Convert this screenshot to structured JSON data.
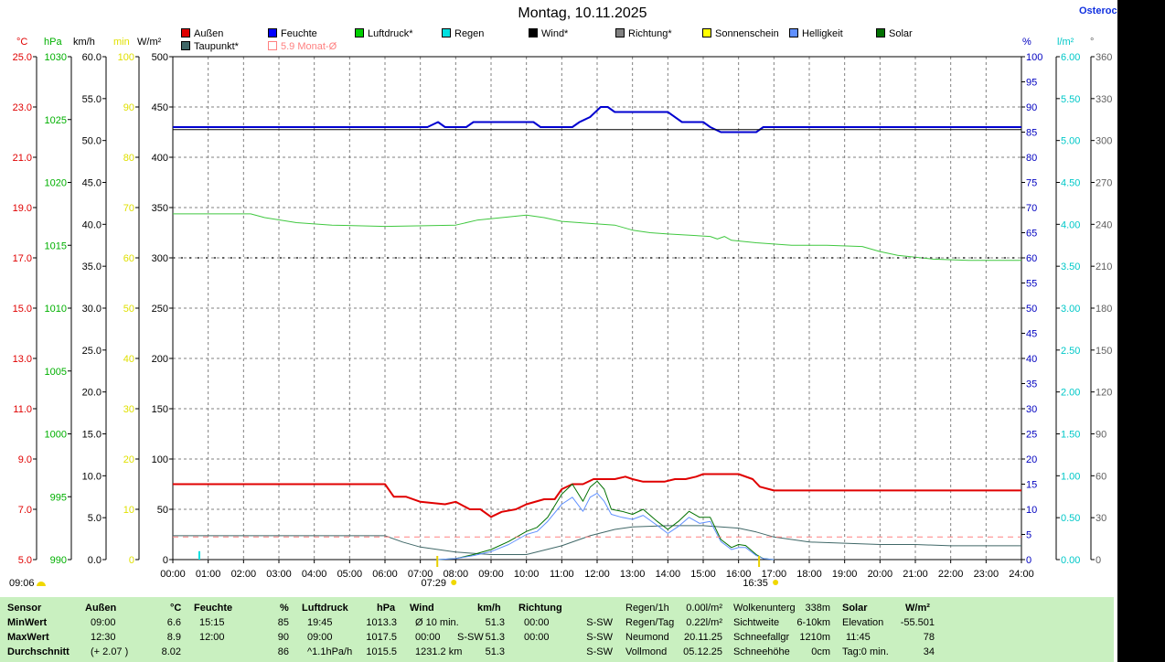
{
  "title": "Montag, 10.11.2025",
  "site_label": "Osteroc",
  "legend": [
    {
      "label": "Außen",
      "color": "#e00000"
    },
    {
      "label": "Feuchte",
      "color": "#0000ff"
    },
    {
      "label": "Luftdruck*",
      "color": "#00d000"
    },
    {
      "label": "Regen",
      "color": "#00e0e0"
    },
    {
      "label": "Wind*",
      "color": "#000000"
    },
    {
      "label": "Richtung*",
      "color": "#808080"
    },
    {
      "label": "Sonnenschein",
      "color": "#ffff00"
    },
    {
      "label": "Helligkeit",
      "color": "#6090ff"
    },
    {
      "label": "Solar",
      "color": "#007000"
    },
    {
      "label": "Taupunkt*",
      "color": "#406868"
    },
    {
      "label": "5.9 Monat-Ø",
      "color": "#ff8080"
    }
  ],
  "axis_units": {
    "temp": "°C",
    "pressure": "hPa",
    "wind": "km/h",
    "minutes": "min",
    "solar": "W/m²",
    "humidity": "%",
    "rain": "l/m²",
    "direction": "°"
  },
  "markers": {
    "sunrise": "07:29",
    "sunset": "16:35",
    "bottom_left_time": "09:06"
  },
  "chart_data": {
    "type": "line",
    "x_ticks": [
      "00:00",
      "01:00",
      "02:00",
      "03:00",
      "04:00",
      "05:00",
      "06:00",
      "07:00",
      "08:00",
      "09:00",
      "10:00",
      "11:00",
      "12:00",
      "13:00",
      "14:00",
      "15:00",
      "16:00",
      "17:00",
      "18:00",
      "19:00",
      "20:00",
      "21:00",
      "22:00",
      "23:00",
      "24:00"
    ],
    "xlim": [
      0,
      24
    ],
    "axes": {
      "temp": {
        "ticks": [
          "5.0",
          "7.0",
          "9.0",
          "11.0",
          "13.0",
          "15.0",
          "17.0",
          "19.0",
          "21.0",
          "23.0",
          "25.0"
        ],
        "range": [
          5,
          25
        ],
        "color": "#e00000"
      },
      "pressure": {
        "ticks": [
          "990",
          "995",
          "1000",
          "1005",
          "1010",
          "1015",
          "1020",
          "1025",
          "1030"
        ],
        "range": [
          990,
          1030
        ],
        "color": "#00b000"
      },
      "wind": {
        "ticks": [
          "0.0",
          "5.0",
          "10.0",
          "15.0",
          "20.0",
          "25.0",
          "30.0",
          "35.0",
          "40.0",
          "45.0",
          "50.0",
          "55.0",
          "60.0"
        ],
        "range": [
          0,
          60
        ],
        "color": "#000000"
      },
      "minutes": {
        "ticks": [
          "0",
          "10",
          "20",
          "30",
          "40",
          "50",
          "60",
          "70",
          "80",
          "90",
          "100"
        ],
        "range": [
          0,
          100
        ],
        "color": "#e0e000"
      },
      "solar": {
        "ticks": [
          "0",
          "50",
          "100",
          "150",
          "200",
          "250",
          "300",
          "350",
          "400",
          "450",
          "500"
        ],
        "range": [
          0,
          500
        ],
        "color": "#000000"
      },
      "humidity": {
        "ticks": [
          "0",
          "5",
          "10",
          "15",
          "20",
          "25",
          "30",
          "35",
          "40",
          "45",
          "50",
          "55",
          "60",
          "65",
          "70",
          "75",
          "80",
          "85",
          "90",
          "95",
          "100"
        ],
        "range": [
          0,
          100
        ],
        "color": "#0000c0"
      },
      "rain": {
        "ticks": [
          "0.00",
          "0.50",
          "1.00",
          "1.50",
          "2.00",
          "2.50",
          "3.00",
          "3.50",
          "4.00",
          "4.50",
          "5.00",
          "5.50",
          "6.00"
        ],
        "range": [
          0,
          6
        ],
        "color": "#00c8c8"
      },
      "direction": {
        "ticks": [
          "0",
          "30",
          "60",
          "90",
          "120",
          "150",
          "180",
          "210",
          "240",
          "270",
          "300",
          "330",
          "360"
        ],
        "range": [
          0,
          360
        ],
        "color": "#606060"
      }
    },
    "series": [
      {
        "name": "Außen",
        "axis": "temp",
        "color": "#e00000",
        "width": 2,
        "points": [
          [
            0,
            8.0
          ],
          [
            6.0,
            8.0
          ],
          [
            6.25,
            7.5
          ],
          [
            6.6,
            7.5
          ],
          [
            7.0,
            7.3
          ],
          [
            7.7,
            7.2
          ],
          [
            8.0,
            7.3
          ],
          [
            8.4,
            7.0
          ],
          [
            8.7,
            7.0
          ],
          [
            9.0,
            6.7
          ],
          [
            9.3,
            6.9
          ],
          [
            9.7,
            7.0
          ],
          [
            10.0,
            7.2
          ],
          [
            10.5,
            7.4
          ],
          [
            10.8,
            7.4
          ],
          [
            11.0,
            7.8
          ],
          [
            11.3,
            8.0
          ],
          [
            11.6,
            8.0
          ],
          [
            11.9,
            8.2
          ],
          [
            12.5,
            8.2
          ],
          [
            12.8,
            8.3
          ],
          [
            13.0,
            8.2
          ],
          [
            13.3,
            8.1
          ],
          [
            13.9,
            8.1
          ],
          [
            14.2,
            8.2
          ],
          [
            14.5,
            8.2
          ],
          [
            14.8,
            8.3
          ],
          [
            15.0,
            8.4
          ],
          [
            16.0,
            8.4
          ],
          [
            16.4,
            8.2
          ],
          [
            16.6,
            7.9
          ],
          [
            17.0,
            7.75
          ],
          [
            24,
            7.75
          ]
        ]
      },
      {
        "name": "Feuchte",
        "axis": "humidity",
        "color": "#0000d0",
        "width": 2,
        "points": [
          [
            0,
            86
          ],
          [
            7.2,
            86
          ],
          [
            7.5,
            87
          ],
          [
            7.7,
            86
          ],
          [
            8.3,
            86
          ],
          [
            8.5,
            87
          ],
          [
            10.2,
            87
          ],
          [
            10.4,
            86
          ],
          [
            11.3,
            86
          ],
          [
            11.5,
            87
          ],
          [
            11.8,
            88
          ],
          [
            12.1,
            90
          ],
          [
            12.3,
            90
          ],
          [
            12.5,
            89
          ],
          [
            13.0,
            89
          ],
          [
            14.0,
            89
          ],
          [
            14.4,
            87
          ],
          [
            15.0,
            87
          ],
          [
            15.2,
            86
          ],
          [
            15.5,
            85
          ],
          [
            16.5,
            85
          ],
          [
            16.7,
            86
          ],
          [
            24,
            86
          ]
        ]
      },
      {
        "name": "Wind*",
        "axis": "humidity",
        "color": "#000000",
        "width": 1,
        "points": [
          [
            0,
            85.5
          ],
          [
            24,
            85.5
          ]
        ]
      },
      {
        "name": "Luftdruck*",
        "axis": "pressure",
        "color": "#40c840",
        "width": 1,
        "points": [
          [
            0,
            1017.5
          ],
          [
            2.2,
            1017.5
          ],
          [
            2.6,
            1017.2
          ],
          [
            3.5,
            1016.8
          ],
          [
            4.5,
            1016.6
          ],
          [
            6.0,
            1016.5
          ],
          [
            8.0,
            1016.6
          ],
          [
            8.6,
            1017.0
          ],
          [
            9.3,
            1017.2
          ],
          [
            10.0,
            1017.4
          ],
          [
            10.5,
            1017.2
          ],
          [
            11.0,
            1016.9
          ],
          [
            11.5,
            1016.8
          ],
          [
            12.5,
            1016.6
          ],
          [
            13.0,
            1016.2
          ],
          [
            13.5,
            1016.0
          ],
          [
            14.0,
            1015.9
          ],
          [
            15.2,
            1015.7
          ],
          [
            15.4,
            1015.5
          ],
          [
            15.6,
            1015.7
          ],
          [
            15.8,
            1015.4
          ],
          [
            16.5,
            1015.2
          ],
          [
            17.5,
            1015.0
          ],
          [
            18.5,
            1015.0
          ],
          [
            19.5,
            1014.9
          ],
          [
            20.0,
            1014.5
          ],
          [
            20.5,
            1014.2
          ],
          [
            21.5,
            1013.9
          ],
          [
            22.5,
            1013.8
          ],
          [
            24,
            1013.8
          ]
        ]
      },
      {
        "name": "Richtung*",
        "axis": "direction",
        "color": "#606060",
        "width": 2,
        "dash": "2,7",
        "points": [
          [
            0,
            216
          ],
          [
            24,
            216
          ]
        ]
      },
      {
        "name": "Taupunkt*",
        "axis": "temp",
        "color": "#406868",
        "width": 1,
        "points": [
          [
            0,
            5.95
          ],
          [
            6.0,
            5.95
          ],
          [
            6.5,
            5.7
          ],
          [
            7.0,
            5.5
          ],
          [
            8.0,
            5.3
          ],
          [
            9.0,
            5.2
          ],
          [
            10.0,
            5.2
          ],
          [
            11.0,
            5.55
          ],
          [
            11.8,
            5.95
          ],
          [
            12.5,
            6.2
          ],
          [
            13.0,
            6.3
          ],
          [
            14.0,
            6.35
          ],
          [
            15.0,
            6.35
          ],
          [
            16.0,
            6.25
          ],
          [
            16.5,
            6.1
          ],
          [
            17.0,
            5.9
          ],
          [
            17.5,
            5.8
          ],
          [
            18.0,
            5.7
          ],
          [
            19.0,
            5.65
          ],
          [
            20.0,
            5.6
          ],
          [
            21.0,
            5.6
          ],
          [
            22.0,
            5.55
          ],
          [
            24,
            5.55
          ]
        ]
      },
      {
        "name": "Solar",
        "axis": "solar",
        "color": "#007000",
        "width": 1,
        "points": [
          [
            7.5,
            0
          ],
          [
            8.0,
            1
          ],
          [
            8.5,
            5
          ],
          [
            9.0,
            10
          ],
          [
            9.5,
            18
          ],
          [
            10.0,
            28
          ],
          [
            10.3,
            32
          ],
          [
            10.6,
            42
          ],
          [
            11.0,
            65
          ],
          [
            11.3,
            75
          ],
          [
            11.6,
            58
          ],
          [
            11.8,
            72
          ],
          [
            12.0,
            78
          ],
          [
            12.2,
            70
          ],
          [
            12.4,
            50
          ],
          [
            12.7,
            48
          ],
          [
            13.0,
            45
          ],
          [
            13.3,
            50
          ],
          [
            13.7,
            38
          ],
          [
            14.0,
            30
          ],
          [
            14.3,
            38
          ],
          [
            14.6,
            48
          ],
          [
            14.9,
            42
          ],
          [
            15.2,
            42
          ],
          [
            15.5,
            20
          ],
          [
            15.8,
            12
          ],
          [
            16.0,
            15
          ],
          [
            16.2,
            14
          ],
          [
            16.5,
            5
          ],
          [
            16.7,
            1
          ],
          [
            17.0,
            0
          ]
        ]
      },
      {
        "name": "Helligkeit",
        "axis": "solar",
        "color": "#6090ff",
        "width": 1,
        "points": [
          [
            7.5,
            0
          ],
          [
            8.0,
            1
          ],
          [
            8.5,
            4
          ],
          [
            9.0,
            8
          ],
          [
            9.5,
            15
          ],
          [
            10.0,
            25
          ],
          [
            10.3,
            28
          ],
          [
            10.6,
            38
          ],
          [
            11.0,
            55
          ],
          [
            11.3,
            62
          ],
          [
            11.6,
            48
          ],
          [
            11.8,
            62
          ],
          [
            12.0,
            66
          ],
          [
            12.2,
            58
          ],
          [
            12.4,
            45
          ],
          [
            12.7,
            42
          ],
          [
            13.0,
            40
          ],
          [
            13.3,
            44
          ],
          [
            13.7,
            34
          ],
          [
            14.0,
            26
          ],
          [
            14.3,
            33
          ],
          [
            14.6,
            42
          ],
          [
            14.9,
            36
          ],
          [
            15.2,
            38
          ],
          [
            15.5,
            18
          ],
          [
            15.8,
            10
          ],
          [
            16.0,
            12
          ],
          [
            16.2,
            12
          ],
          [
            16.5,
            4
          ],
          [
            16.7,
            1
          ],
          [
            17.0,
            0
          ]
        ]
      },
      {
        "name": "5.9 Monat-Ø",
        "axis": "temp",
        "color": "#ff8080",
        "width": 1,
        "dash": "6,5",
        "points": [
          [
            0,
            5.9
          ],
          [
            24,
            5.9
          ]
        ]
      }
    ],
    "rain_bars": [
      {
        "x": 0.75,
        "value": 0.1
      }
    ],
    "sun_markers": [
      {
        "x": 7.48,
        "label": "07:29"
      },
      {
        "x": 16.58,
        "label": "16:35"
      }
    ]
  },
  "table": {
    "headers": {
      "sensor": "Sensor",
      "aussen": "Außen",
      "aussen_unit": "°C",
      "feuchte": "Feuchte",
      "feuchte_unit": "%",
      "luftdruck": "Luftdruck",
      "luftdruck_unit": "hPa",
      "wind": "Wind",
      "wind_unit": "km/h",
      "richtung": "Richtung",
      "solar": "Solar",
      "solar_unit": "W/m²"
    },
    "rows": [
      {
        "label": "MinWert",
        "aussen_time": "09:00",
        "aussen_val": "6.6",
        "feuchte_time": "15:15",
        "feuchte_val": "85",
        "druck_time": "19:45",
        "druck_val": "1013.3",
        "wind_desc": "Ø 10 min.",
        "wind_dir": "",
        "wind_val": "51.3",
        "richt_time": "00:00",
        "richt_val": "S-SW"
      },
      {
        "label": "MaxWert",
        "aussen_time": "12:30",
        "aussen_val": "8.9",
        "feuchte_time": "12:00",
        "feuchte_val": "90",
        "druck_time": "09:00",
        "druck_val": "1017.5",
        "wind_desc": "00:00",
        "wind_dir": "S-SW",
        "wind_val": "51.3",
        "richt_time": "00:00",
        "richt_val": "S-SW"
      },
      {
        "label": "Durchschnitt",
        "aussen_time": "(+ 2.07 )",
        "aussen_val": "8.02",
        "feuchte_time": "",
        "feuchte_val": "86",
        "druck_time": "^1.1hPa/h",
        "druck_val": "1015.5",
        "wind_desc": "1231.2 km",
        "wind_dir": "",
        "wind_val": "51.3",
        "richt_time": "",
        "richt_val": "S-SW"
      }
    ],
    "extra_a": [
      {
        "k": "Regen/1h",
        "v": "0.00l/m²"
      },
      {
        "k": "Regen/Tag",
        "v": "0.22l/m²"
      },
      {
        "k": "Neumond",
        "v": "20.11.25"
      },
      {
        "k": "Vollmond",
        "v": "05.12.25"
      }
    ],
    "extra_b": [
      {
        "k": "Wolkenunterg",
        "v": "338m"
      },
      {
        "k": "Sichtweite",
        "v": "6-10km"
      },
      {
        "k": "Schneefallgr",
        "v": "1210m"
      },
      {
        "k": "Schneehöhe",
        "v": "0cm"
      }
    ],
    "solar_rows": [
      {
        "k": "Elevation",
        "v": "-55.501"
      },
      {
        "k": "11:45",
        "v": "78"
      },
      {
        "k": "Tag:0 min.",
        "v": "34"
      }
    ]
  }
}
